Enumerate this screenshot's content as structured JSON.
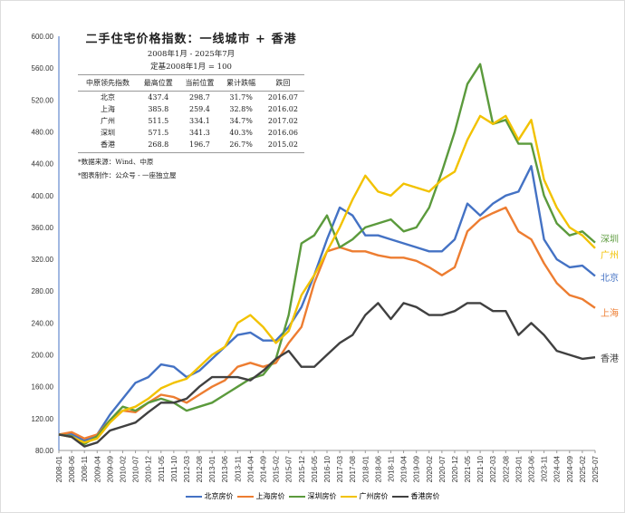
{
  "chart_data": {
    "type": "line",
    "title": "二手住宅价格指数：一线城市 + 香港",
    "subtitle": "2008年1月 - 2025年7月",
    "subtitle2": "定基2008年1月 = 100",
    "ylim": [
      80,
      600
    ],
    "yticks": [
      "80.00",
      "120.00",
      "160.00",
      "200.00",
      "240.00",
      "280.00",
      "320.00",
      "360.00",
      "400.00",
      "440.00",
      "480.00",
      "520.00",
      "560.00",
      "600.00"
    ],
    "x": [
      "2008-01",
      "2008-06",
      "2008-11",
      "2009-04",
      "2009-09",
      "2010-02",
      "2010-07",
      "2010-12",
      "2011-05",
      "2011-10",
      "2012-03",
      "2012-08",
      "2013-01",
      "2013-06",
      "2013-11",
      "2014-04",
      "2014-09",
      "2015-02",
      "2015-07",
      "2015-12",
      "2016-05",
      "2016-10",
      "2017-03",
      "2017-08",
      "2018-01",
      "2018-06",
      "2018-11",
      "2019-04",
      "2019-09",
      "2020-02",
      "2020-07",
      "2020-12",
      "2021-05",
      "2021-10",
      "2022-03",
      "2022-08",
      "2023-01",
      "2023-06",
      "2023-11",
      "2024-04",
      "2024-09",
      "2025-02",
      "2025-07"
    ],
    "grid": false,
    "legend_placement": "bottom",
    "series": [
      {
        "name": "北京房价",
        "end_label": "北京",
        "color": "#4472C4",
        "values": [
          100,
          101,
          92,
          100,
          125,
          145,
          165,
          172,
          188,
          185,
          172,
          180,
          195,
          210,
          225,
          228,
          218,
          218,
          235,
          260,
          300,
          345,
          385,
          375,
          350,
          350,
          345,
          340,
          335,
          330,
          330,
          345,
          390,
          375,
          390,
          400,
          405,
          437,
          345,
          320,
          310,
          312,
          299
        ]
      },
      {
        "name": "上海房价",
        "end_label": "上海",
        "color": "#ED7D31",
        "values": [
          100,
          103,
          95,
          100,
          118,
          130,
          128,
          140,
          150,
          147,
          140,
          150,
          160,
          168,
          185,
          190,
          185,
          190,
          215,
          235,
          290,
          330,
          335,
          330,
          330,
          325,
          322,
          322,
          318,
          310,
          300,
          310,
          355,
          370,
          378,
          385,
          355,
          345,
          315,
          290,
          275,
          270,
          259
        ]
      },
      {
        "name": "深圳房价",
        "end_label": "深圳",
        "color": "#5B9A3C",
        "values": [
          100,
          98,
          88,
          98,
          118,
          135,
          130,
          140,
          145,
          140,
          130,
          135,
          140,
          150,
          160,
          170,
          175,
          195,
          250,
          340,
          350,
          375,
          335,
          345,
          360,
          365,
          370,
          355,
          360,
          385,
          430,
          480,
          540,
          565,
          490,
          495,
          465,
          465,
          400,
          365,
          350,
          355,
          341
        ]
      },
      {
        "name": "广州房价",
        "end_label": "广州",
        "color": "#F2C200",
        "values": [
          100,
          97,
          90,
          95,
          115,
          130,
          135,
          145,
          158,
          165,
          170,
          185,
          200,
          210,
          240,
          250,
          235,
          215,
          230,
          275,
          300,
          330,
          360,
          395,
          425,
          405,
          400,
          415,
          410,
          405,
          420,
          430,
          470,
          500,
          490,
          500,
          470,
          495,
          420,
          385,
          360,
          350,
          334
        ]
      },
      {
        "name": "香港房价",
        "end_label": "香港",
        "color": "#404040",
        "values": [
          100,
          97,
          85,
          90,
          105,
          110,
          115,
          128,
          140,
          140,
          145,
          160,
          172,
          172,
          172,
          168,
          180,
          195,
          205,
          185,
          185,
          200,
          215,
          225,
          250,
          265,
          245,
          265,
          260,
          250,
          250,
          255,
          265,
          265,
          255,
          255,
          225,
          240,
          225,
          205,
          200,
          195,
          197
        ]
      }
    ]
  },
  "table": {
    "headers": [
      "中原领先指数",
      "最高位置",
      "当前位置",
      "累计跌幅",
      "跌回"
    ],
    "rows": [
      [
        "北京",
        "437.4",
        "298.7",
        "31.7%",
        "2016.07"
      ],
      [
        "上海",
        "385.8",
        "259.4",
        "32.8%",
        "2016.02"
      ],
      [
        "广州",
        "511.5",
        "334.1",
        "34.7%",
        "2017.02"
      ],
      [
        "深圳",
        "571.5",
        "341.3",
        "40.3%",
        "2016.06"
      ],
      [
        "香港",
        "268.8",
        "196.7",
        "26.7%",
        "2015.02"
      ]
    ],
    "notes": [
      "*数据来源：Wind、中原",
      "*图表制作：公众号 - 一座独立屋"
    ]
  }
}
